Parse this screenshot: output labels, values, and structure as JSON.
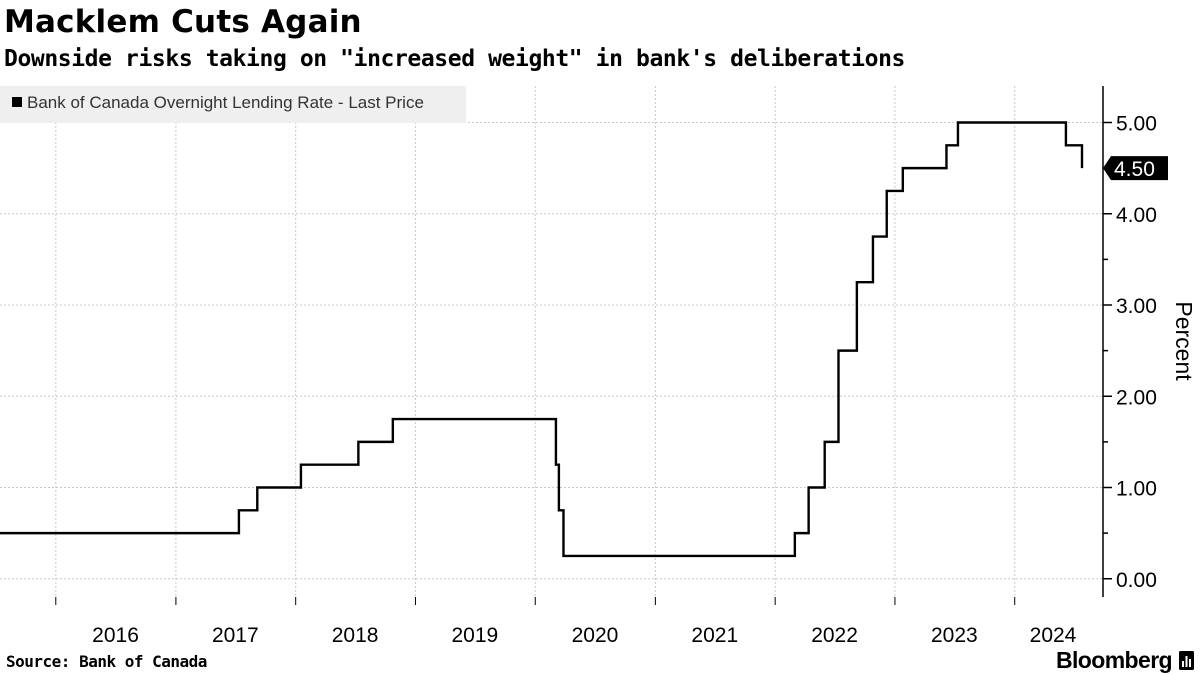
{
  "header": {
    "title": "Macklem Cuts Again",
    "subtitle": "Downside risks taking on \"increased weight\" in bank's deliberations"
  },
  "footer": {
    "source": "Source:  Bank of Canada",
    "brand": "Bloomberg"
  },
  "colors": {
    "line": "#000000",
    "grid": "#c8c8c8",
    "legend_bg": "#efefef",
    "label_bg": "#000000",
    "label_text": "#ffffff"
  },
  "chart_data": {
    "type": "line",
    "series": [
      {
        "name": "Bank of Canada Overnight Lending Rate - Last Price",
        "steps": [
          [
            "2015-07-15",
            0.5
          ],
          [
            "2017-07-12",
            0.75
          ],
          [
            "2017-09-06",
            1.0
          ],
          [
            "2018-01-17",
            1.25
          ],
          [
            "2018-07-11",
            1.5
          ],
          [
            "2018-10-24",
            1.75
          ],
          [
            "2020-03-04",
            1.25
          ],
          [
            "2020-03-13",
            0.75
          ],
          [
            "2020-03-27",
            0.25
          ],
          [
            "2022-03-02",
            0.5
          ],
          [
            "2022-04-13",
            1.0
          ],
          [
            "2022-06-01",
            1.5
          ],
          [
            "2022-07-13",
            2.5
          ],
          [
            "2022-09-07",
            3.25
          ],
          [
            "2022-10-26",
            3.75
          ],
          [
            "2022-12-07",
            4.25
          ],
          [
            "2023-01-25",
            4.5
          ],
          [
            "2023-06-07",
            4.75
          ],
          [
            "2023-07-12",
            5.0
          ],
          [
            "2024-06-05",
            4.75
          ],
          [
            "2024-07-24",
            4.5
          ]
        ],
        "last_value": "4.50"
      }
    ],
    "x_ticks": [
      "2016",
      "2017",
      "2018",
      "2019",
      "2020",
      "2021",
      "2022",
      "2023",
      "2024"
    ],
    "y_ticks": [
      "0.00",
      "1.00",
      "2.00",
      "3.00",
      "4.00",
      "5.00"
    ],
    "ylabel": "Percent",
    "ylim": [
      -0.2,
      5.4
    ],
    "xlim": [
      "2015-07-15",
      "2024-07-24"
    ],
    "grid": true,
    "legend_position": "top-left",
    "y_axis_side": "right"
  }
}
